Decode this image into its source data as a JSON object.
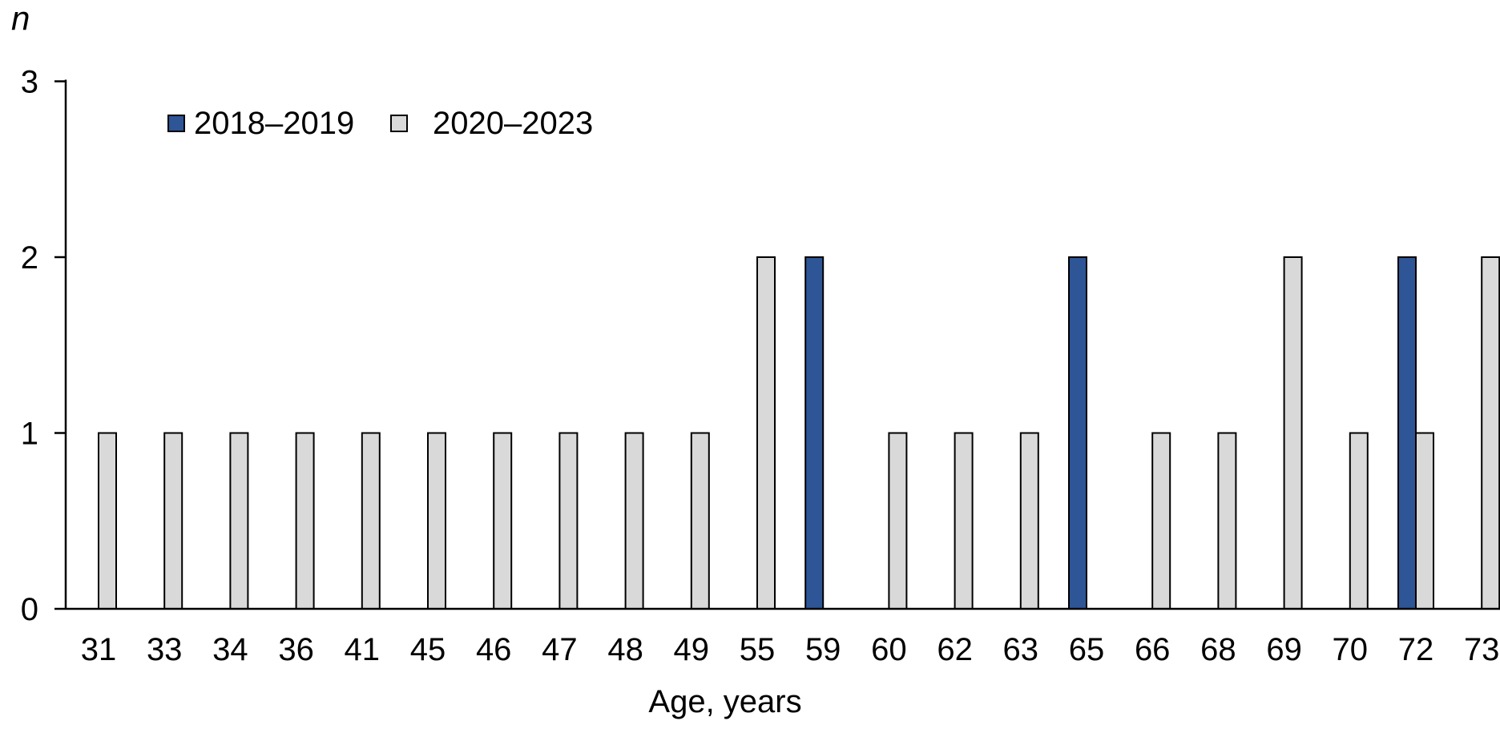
{
  "chart_data": {
    "type": "bar",
    "subtype": "clustered",
    "title": "",
    "xlabel": "Age, years",
    "ylabel": "n",
    "ylim": [
      0,
      3
    ],
    "y_ticks": [
      "0",
      "1",
      "2",
      "3"
    ],
    "grid": false,
    "legend_position": "top-left-inside",
    "categories": [
      "31",
      "33",
      "34",
      "36",
      "41",
      "45",
      "46",
      "47",
      "48",
      "49",
      "55",
      "59",
      "60",
      "62",
      "63",
      "65",
      "66",
      "68",
      "69",
      "70",
      "72",
      "73"
    ],
    "series": [
      {
        "name": "2018–2019",
        "color": "#2E5596",
        "values": [
          0,
          0,
          0,
          0,
          0,
          0,
          0,
          0,
          0,
          0,
          0,
          2,
          0,
          0,
          0,
          2,
          0,
          0,
          0,
          0,
          2,
          0
        ]
      },
      {
        "name": "2020–2023",
        "color": "#D9D9D9",
        "values": [
          1,
          1,
          1,
          1,
          1,
          1,
          1,
          1,
          1,
          1,
          2,
          0,
          1,
          1,
          1,
          0,
          1,
          1,
          2,
          1,
          1,
          2
        ]
      }
    ],
    "bar_outline_color": "#000000",
    "axis_color": "#000000",
    "text_color": "#000000"
  }
}
